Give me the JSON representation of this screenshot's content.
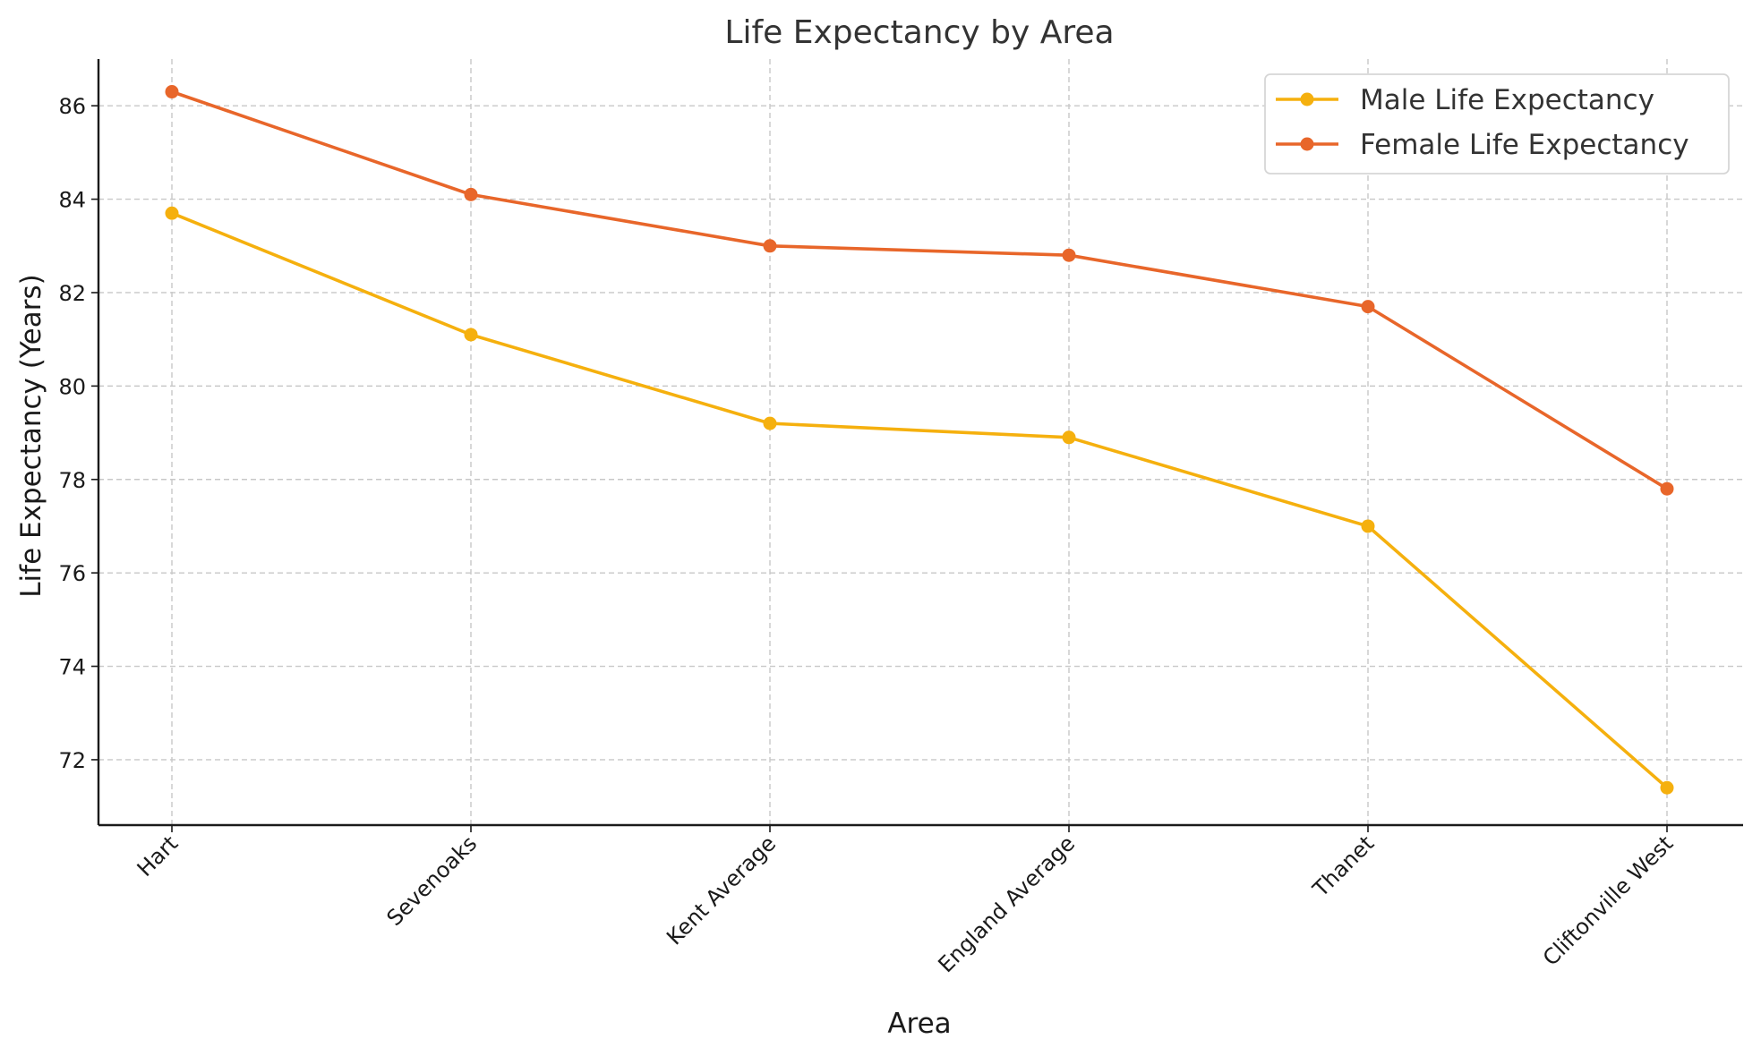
{
  "chart_data": {
    "type": "line",
    "title": "Life Expectancy by Area",
    "xlabel": "Area",
    "ylabel": "Life Expectancy (Years)",
    "categories": [
      "Hart",
      "Sevenoaks",
      "Kent Average",
      "England Average",
      "Thanet",
      "Cliftonville West"
    ],
    "ylim": [
      70.6,
      87.0
    ],
    "yticks": [
      72,
      74,
      76,
      78,
      80,
      82,
      84,
      86
    ],
    "grid": true,
    "legend_position": "top-right",
    "series": [
      {
        "name": "Male Life Expectancy",
        "color": "#f5b00e",
        "values": [
          83.7,
          81.1,
          79.2,
          78.9,
          77.0,
          71.4
        ]
      },
      {
        "name": "Female Life Expectancy",
        "color": "#e8662a",
        "values": [
          86.3,
          84.1,
          83.0,
          82.8,
          81.7,
          77.8
        ]
      }
    ]
  }
}
